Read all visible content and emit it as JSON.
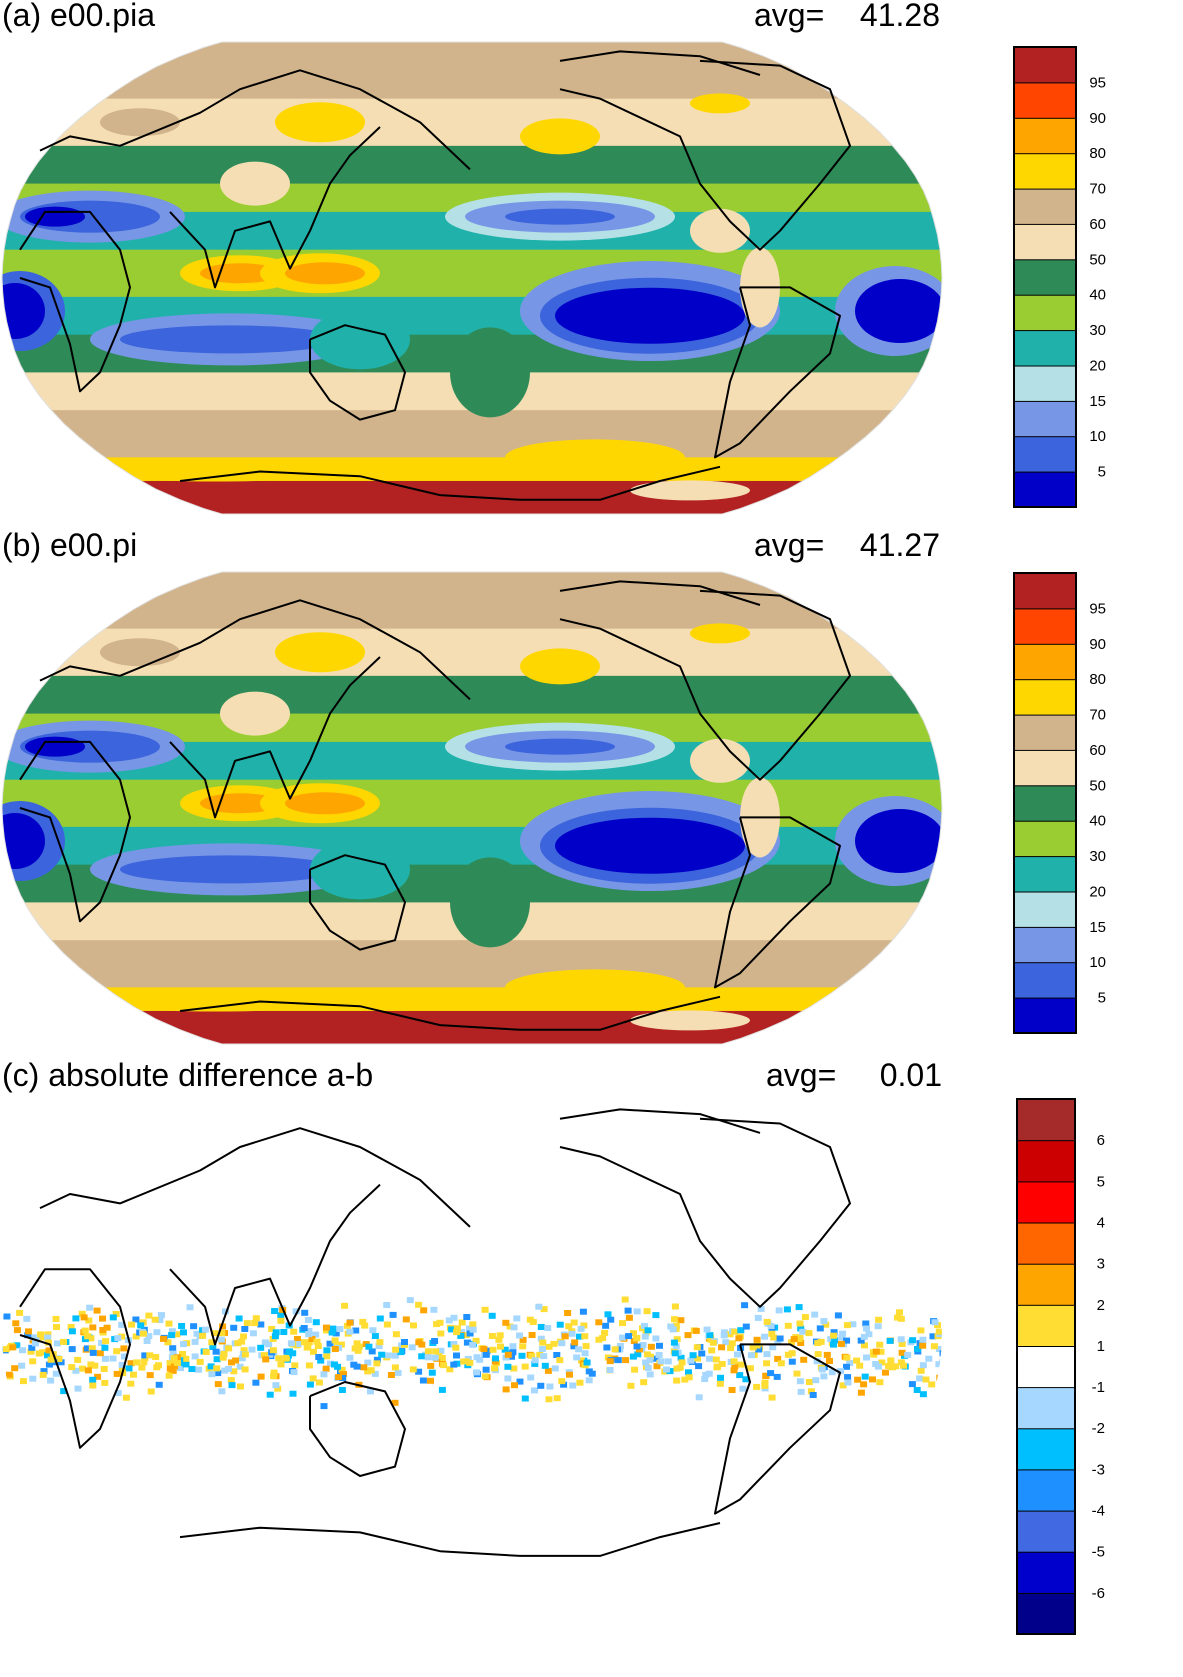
{
  "panels": [
    {
      "id": "a",
      "title": "(a) e00.pia",
      "avg_label": "avg=",
      "avg_value": "41.28",
      "colorbar": {
        "colors": [
          "#0000c8",
          "#3c64dc",
          "#7896e6",
          "#b4e0e6",
          "#20b2aa",
          "#9acd32",
          "#2e8b57",
          "#f5deb3",
          "#d2b48c",
          "#ffd700",
          "#ffa500",
          "#ff4500",
          "#b22222"
        ],
        "labels": [
          "5",
          "10",
          "15",
          "20",
          "30",
          "40",
          "50",
          "60",
          "70",
          "80",
          "90",
          "95"
        ]
      }
    },
    {
      "id": "b",
      "title": "(b) e00.pi",
      "avg_label": "avg=",
      "avg_value": "41.27",
      "colorbar": {
        "colors": [
          "#0000c8",
          "#3c64dc",
          "#7896e6",
          "#b4e0e6",
          "#20b2aa",
          "#9acd32",
          "#2e8b57",
          "#f5deb3",
          "#d2b48c",
          "#ffd700",
          "#ffa500",
          "#ff4500",
          "#b22222"
        ],
        "labels": [
          "5",
          "10",
          "15",
          "20",
          "30",
          "40",
          "50",
          "60",
          "70",
          "80",
          "90",
          "95"
        ]
      }
    },
    {
      "id": "c",
      "title": "(c) absolute difference a-b",
      "avg_label": "avg=",
      "avg_value": "0.01",
      "colorbar": {
        "colors": [
          "#00008b",
          "#0000cd",
          "#4169e1",
          "#1e90ff",
          "#00bfff",
          "#a6d8ff",
          "#ffffff",
          "#ffdd33",
          "#ffa500",
          "#ff6600",
          "#ff0000",
          "#cc0000",
          "#a52a2a"
        ],
        "labels": [
          "-6",
          "-5",
          "-4",
          "-3",
          "-2",
          "-1",
          "1",
          "2",
          "3",
          "4",
          "5",
          "6"
        ]
      }
    }
  ]
}
